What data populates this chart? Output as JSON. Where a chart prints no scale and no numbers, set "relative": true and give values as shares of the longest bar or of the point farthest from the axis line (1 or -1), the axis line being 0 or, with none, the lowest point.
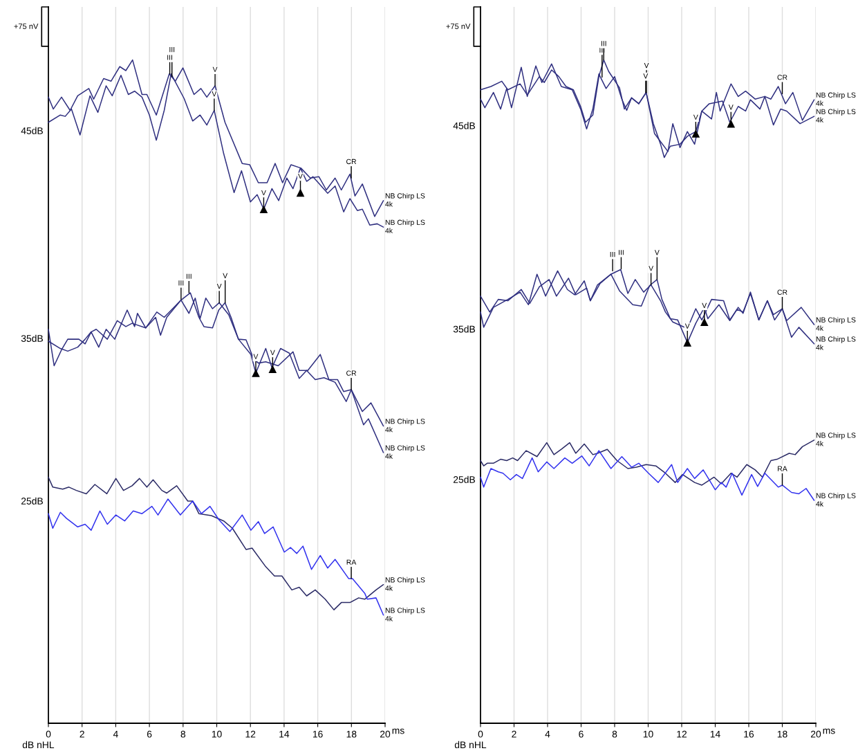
{
  "chart_data": [
    {
      "type": "line",
      "relative": true,
      "xlabel": "ms",
      "ylabel": "dB nHL",
      "xlim": [
        0,
        20
      ],
      "xticks": [
        0,
        2,
        4,
        6,
        8,
        10,
        12,
        14,
        16,
        18,
        20
      ],
      "grid": "x",
      "legend": false,
      "marker": "none",
      "line_style": "solid",
      "series": [
        {
          "name": "NB Chirp LS\n4k",
          "color": "#303080",
          "x": [
            0,
            0.29,
            0.78,
            1.29,
            1.74,
            2.4,
            2.69,
            3.28,
            3.72,
            4.24,
            4.6,
            5.0,
            5.56,
            5.85,
            6.41,
            7.18,
            7.54,
            7.99,
            8.65,
            9.06,
            9.41,
            9.9,
            10.49,
            11.51,
            11.96,
            12.47,
            12.99,
            13.47,
            13.91,
            14.41,
            15.0,
            15.56,
            16.07,
            16.51,
            17.03,
            17.4,
            17.91,
            18.21,
            18.65,
            19.38,
            19.9
          ],
          "values": [
            0.944,
            0.926,
            0.944,
            0.924,
            0.946,
            0.957,
            0.941,
            0.972,
            0.968,
            0.99,
            0.984,
            1.0,
            0.948,
            0.948,
            0.917,
            0.979,
            0.968,
            0.988,
            0.948,
            0.957,
            0.944,
            0.961,
            0.906,
            0.844,
            0.842,
            0.815,
            0.815,
            0.844,
            0.815,
            0.842,
            0.837,
            0.822,
            0.824,
            0.804,
            0.822,
            0.804,
            0.828,
            0.795,
            0.813,
            0.764,
            0.788
          ]
        },
        {
          "name": "NB Chirp LS\n4k",
          "color": "#303080",
          "x": [
            0,
            0.71,
            1.0,
            1.37,
            1.88,
            2.47,
            2.94,
            3.43,
            3.79,
            4.31,
            4.75,
            5.12,
            5.56,
            6.0,
            6.41,
            6.88,
            7.29,
            8.06,
            8.57,
            9.01,
            9.41,
            9.85,
            10.41,
            11.03,
            11.47,
            12.0,
            12.4,
            12.79,
            13.28,
            13.68,
            14.16,
            14.53,
            14.97,
            15.34,
            15.71,
            16.59,
            17.03,
            17.54,
            17.91,
            18.35,
            18.65,
            19.09,
            19.53,
            19.9
          ],
          "values": [
            0.906,
            0.917,
            0.915,
            0.926,
            0.887,
            0.946,
            0.921,
            0.961,
            0.946,
            0.977,
            0.948,
            0.953,
            0.944,
            0.917,
            0.879,
            0.924,
            0.979,
            0.942,
            0.908,
            0.917,
            0.902,
            0.924,
            0.859,
            0.8,
            0.833,
            0.786,
            0.797,
            0.775,
            0.806,
            0.788,
            0.822,
            0.806,
            0.837,
            0.817,
            0.824,
            0.799,
            0.81,
            0.771,
            0.791,
            0.773,
            0.775,
            0.751,
            0.753,
            0.748
          ]
        },
        {
          "name": "NB Chirp LS\n4k",
          "color": "#303080",
          "x": [
            0,
            0.34,
            0.78,
            1.15,
            1.81,
            2.18,
            2.54,
            2.99,
            3.43,
            3.94,
            4.68,
            5.12,
            5.29,
            5.78,
            6.44,
            6.88,
            7.88,
            8.35,
            8.72,
            9.01,
            9.35,
            9.75,
            10.15,
            10.71,
            11.29,
            11.74,
            12.18,
            12.47,
            12.91,
            13.65,
            14.53,
            14.9,
            15.41,
            16.15,
            16.66,
            17.18,
            17.54,
            17.99,
            18.65,
            19.16,
            19.9
          ],
          "values": [
            0.594,
            0.539,
            0.563,
            0.579,
            0.579,
            0.572,
            0.59,
            0.567,
            0.594,
            0.579,
            0.623,
            0.598,
            0.618,
            0.596,
            0.62,
            0.612,
            0.638,
            0.618,
            0.641,
            0.61,
            0.641,
            0.625,
            0.634,
            0.616,
            0.579,
            0.578,
            0.55,
            0.543,
            0.545,
            0.539,
            0.56,
            0.532,
            0.532,
            0.556,
            0.518,
            0.518,
            0.5,
            0.503,
            0.47,
            0.483,
            0.448
          ]
        },
        {
          "name": "NB Chirp LS\n4k",
          "color": "#303080",
          "x": [
            0,
            0.71,
            1.15,
            1.74,
            2.18,
            2.54,
            2.84,
            3.5,
            4.09,
            4.6,
            4.97,
            5.78,
            6.37,
            6.66,
            7.03,
            7.88,
            8.43,
            8.94,
            9.24,
            9.75,
            10.12,
            10.49,
            10.85,
            11.29,
            12.03,
            12.32,
            12.91,
            13.28,
            13.79,
            14.31,
            14.9,
            15.34,
            15.85,
            16.37,
            17.03,
            17.69,
            17.99,
            18.72,
            19.01,
            19.9
          ],
          "values": [
            0.576,
            0.565,
            0.561,
            0.567,
            0.579,
            0.59,
            0.594,
            0.579,
            0.607,
            0.598,
            0.603,
            0.596,
            0.612,
            0.585,
            0.612,
            0.638,
            0.649,
            0.612,
            0.598,
            0.596,
            0.623,
            0.634,
            0.612,
            0.579,
            0.556,
            0.528,
            0.565,
            0.536,
            0.565,
            0.558,
            0.52,
            0.532,
            0.518,
            0.521,
            0.514,
            0.485,
            0.503,
            0.45,
            0.459,
            0.408
          ]
        },
        {
          "name": "NB Chirp LS\n4k",
          "color": "#2b2b66",
          "x": [
            0,
            0.26,
            0.85,
            1.22,
            1.66,
            2.25,
            2.76,
            3.47,
            4.01,
            4.46,
            4.97,
            5.41,
            5.85,
            6.22,
            6.74,
            7.03,
            7.62,
            8.28,
            8.57,
            8.94,
            9.68,
            10.41,
            10.93,
            11.74,
            12.1,
            12.91,
            13.43,
            13.87,
            14.46,
            14.9,
            15.34,
            15.85,
            16.44,
            16.96,
            17.4,
            17.91,
            18.43,
            18.79,
            19.46,
            19.9
          ],
          "values": [
            0.371,
            0.356,
            0.353,
            0.356,
            0.351,
            0.346,
            0.36,
            0.346,
            0.369,
            0.351,
            0.358,
            0.369,
            0.356,
            0.367,
            0.351,
            0.347,
            0.358,
            0.335,
            0.335,
            0.316,
            0.313,
            0.305,
            0.294,
            0.262,
            0.264,
            0.236,
            0.222,
            0.222,
            0.201,
            0.205,
            0.192,
            0.201,
            0.187,
            0.171,
            0.182,
            0.182,
            0.189,
            0.187,
            0.201,
            0.209
          ]
        },
        {
          "name": "NB Chirp LS\n4k",
          "color": "#3333ee",
          "x": [
            0,
            0.26,
            0.71,
            1.07,
            1.74,
            2.18,
            2.54,
            3.06,
            3.5,
            4.01,
            4.53,
            5.04,
            5.56,
            6.15,
            6.51,
            7.1,
            7.84,
            8.57,
            9.09,
            9.6,
            10.12,
            10.78,
            11.51,
            12.03,
            12.47,
            12.84,
            13.35,
            14.01,
            14.38,
            14.75,
            15.12,
            15.63,
            16.15,
            16.59,
            17.03,
            17.84,
            18.06,
            18.79,
            18.94,
            19.46,
            19.9
          ],
          "values": [
            0.316,
            0.294,
            0.318,
            0.309,
            0.296,
            0.3,
            0.291,
            0.32,
            0.3,
            0.314,
            0.305,
            0.32,
            0.316,
            0.327,
            0.314,
            0.338,
            0.314,
            0.335,
            0.316,
            0.327,
            0.307,
            0.289,
            0.314,
            0.291,
            0.304,
            0.286,
            0.296,
            0.258,
            0.265,
            0.256,
            0.267,
            0.232,
            0.253,
            0.234,
            0.247,
            0.218,
            0.218,
            0.196,
            0.187,
            0.189,
            0.163
          ]
        },
        {
          "type": "scatter",
          "marker": "triangle",
          "color": "#000000",
          "x": [
            12.79,
            14.97,
            12.32,
            13.32
          ],
          "values": [
            0.775,
            0.8,
            0.528,
            0.534
          ]
        }
      ],
      "annotations": [
        "+75 nV",
        "45dB",
        "35dB",
        "25dB",
        {
          "text": "III",
          "x": 7.21,
          "y": 0.979
        },
        {
          "text": "III",
          "x": 7.34,
          "y": 0.975
        },
        {
          "text": "V",
          "x": 9.9,
          "y": 0.961
        },
        {
          "text": "V",
          "x": 9.85,
          "y": 0.924
        },
        {
          "text": "V",
          "x": 12.79,
          "y": 0.775
        },
        {
          "text": "V",
          "x": 14.97,
          "y": 0.8
        },
        {
          "text": "CR",
          "x": 17.99,
          "y": 0.822
        },
        {
          "text": "III",
          "x": 7.88,
          "y": 0.639
        },
        {
          "text": "III",
          "x": 8.35,
          "y": 0.649
        },
        {
          "text": "V",
          "x": 10.15,
          "y": 0.634
        },
        {
          "text": "V",
          "x": 10.5,
          "y": 0.634
        },
        {
          "text": "V",
          "x": 12.32,
          "y": 0.528
        },
        {
          "text": "V",
          "x": 13.32,
          "y": 0.534
        },
        {
          "text": "CR",
          "x": 17.99,
          "y": 0.503
        },
        {
          "text": "RA",
          "x": 17.99,
          "y": 0.218
        }
      ]
    },
    {
      "type": "line",
      "relative": true,
      "xlabel": "ms",
      "ylabel": "dB nHL",
      "xlim": [
        0,
        20
      ],
      "xticks": [
        0,
        2,
        4,
        6,
        8,
        10,
        12,
        14,
        16,
        18,
        20
      ],
      "grid": "x",
      "legend": false,
      "marker": "none",
      "line_style": "solid",
      "series": [
        {
          "name": "NB Chirp LS\n4k",
          "color": "#303080",
          "x": [
            0,
            0.62,
            1.27,
            1.63,
            2.36,
            2.79,
            3.51,
            3.8,
            4.24,
            4.67,
            5.1,
            5.54,
            5.97,
            6.26,
            6.7,
            7.06,
            7.35,
            7.64,
            8.29,
            8.58,
            9.01,
            9.44,
            9.88,
            10.31,
            10.74,
            10.96,
            11.32,
            11.9,
            12.34,
            12.84,
            13.2,
            13.78,
            14.07,
            14.29,
            14.94,
            15.37,
            15.81,
            16.38,
            16.96,
            17.32,
            17.76,
            18.19,
            18.63,
            19.2,
            19.9
          ],
          "values": [
            0.955,
            0.96,
            0.968,
            0.955,
            0.964,
            0.947,
            0.975,
            0.966,
            0.985,
            0.975,
            0.96,
            0.955,
            0.93,
            0.906,
            0.917,
            0.975,
            1.0,
            0.983,
            0.958,
            0.926,
            0.943,
            0.934,
            0.951,
            0.904,
            0.873,
            0.853,
            0.87,
            0.873,
            0.885,
            0.892,
            0.923,
            0.911,
            0.951,
            0.923,
            0.964,
            0.945,
            0.953,
            0.941,
            0.945,
            0.941,
            0.96,
            0.934,
            0.951,
            0.909,
            0.94
          ]
        },
        {
          "name": "NB Chirp LS\n4k",
          "color": "#303080",
          "x": [
            0,
            0.26,
            0.77,
            1.2,
            1.56,
            1.85,
            2.43,
            2.79,
            3.3,
            3.66,
            4.24,
            4.82,
            5.47,
            5.97,
            6.33,
            6.7,
            7.06,
            7.49,
            8.0,
            8.43,
            8.72,
            9.01,
            9.44,
            9.88,
            10.38,
            11.18,
            11.47,
            11.9,
            12.34,
            12.77,
            13.2,
            13.64,
            14.43,
            14.87,
            15.37,
            15.81,
            16.1,
            16.67,
            16.96,
            17.47,
            17.9,
            18.26,
            19.06,
            19.9
          ],
          "values": [
            0.941,
            0.928,
            0.951,
            0.926,
            0.957,
            0.928,
            0.989,
            0.945,
            0.991,
            0.966,
            0.994,
            0.96,
            0.955,
            0.926,
            0.896,
            0.926,
            0.979,
            0.957,
            0.975,
            0.941,
            0.924,
            0.943,
            0.934,
            0.951,
            0.889,
            0.862,
            0.904,
            0.868,
            0.892,
            0.873,
            0.923,
            0.934,
            0.938,
            0.906,
            0.93,
            0.923,
            0.94,
            0.926,
            0.945,
            0.902,
            0.926,
            0.923,
            0.904,
            0.915
          ]
        },
        {
          "name": "NB Chirp LS\n4k",
          "color": "#303080",
          "x": [
            0,
            0.55,
            1.06,
            1.63,
            2.43,
            2.94,
            3.51,
            4.09,
            4.53,
            5.25,
            5.68,
            6.33,
            6.55,
            7.13,
            7.78,
            8.36,
            8.79,
            9.23,
            9.73,
            10.17,
            10.74,
            11.03,
            11.47,
            12.34,
            12.84,
            13.2,
            13.78,
            14.5,
            14.87,
            15.3,
            15.66,
            16.1,
            16.6,
            17.11,
            17.54,
            18.0,
            18.26,
            19.13,
            19.9
          ],
          "values": [
            0.644,
            0.62,
            0.639,
            0.637,
            0.654,
            0.633,
            0.658,
            0.669,
            0.644,
            0.671,
            0.646,
            0.656,
            0.637,
            0.663,
            0.677,
            0.684,
            0.648,
            0.669,
            0.65,
            0.661,
            0.637,
            0.62,
            0.605,
            0.595,
            0.625,
            0.608,
            0.639,
            0.637,
            0.608,
            0.624,
            0.62,
            0.648,
            0.608,
            0.637,
            0.608,
            0.625,
            0.607,
            0.627,
            0.601
          ]
        },
        {
          "name": "NB Chirp LS\n4k",
          "color": "#303080",
          "x": [
            0,
            0.19,
            0.77,
            1.63,
            2.36,
            2.86,
            3.37,
            3.88,
            4.6,
            5.18,
            5.61,
            6.19,
            6.55,
            6.98,
            7.78,
            8.29,
            9.08,
            9.59,
            10.09,
            10.53,
            10.82,
            11.32,
            11.76,
            12.34,
            12.84,
            13.35,
            13.56,
            14.22,
            14.87,
            15.37,
            15.66,
            16.1,
            16.6,
            17.11,
            17.47,
            18.0,
            18.55,
            18.99,
            19.9
          ],
          "values": [
            0.62,
            0.597,
            0.627,
            0.639,
            0.65,
            0.631,
            0.677,
            0.644,
            0.682,
            0.654,
            0.646,
            0.667,
            0.637,
            0.661,
            0.677,
            0.652,
            0.631,
            0.629,
            0.66,
            0.669,
            0.639,
            0.61,
            0.608,
            0.574,
            0.603,
            0.627,
            0.61,
            0.631,
            0.607,
            0.627,
            0.618,
            0.65,
            0.608,
            0.637,
            0.616,
            0.625,
            0.582,
            0.597,
            0.572
          ]
        },
        {
          "name": "NB Chirp LS\n4k",
          "color": "#2b2b66",
          "x": [
            0,
            0.19,
            0.4,
            0.77,
            1.2,
            1.56,
            1.92,
            2.21,
            2.72,
            3.37,
            3.95,
            4.38,
            4.82,
            5.32,
            5.68,
            6.19,
            6.7,
            6.98,
            7.56,
            8.14,
            8.79,
            9.3,
            9.88,
            10.46,
            11.03,
            11.61,
            12.05,
            12.77,
            13.2,
            13.93,
            14.36,
            14.94,
            15.3,
            15.88,
            16.38,
            16.82,
            17.32,
            17.69,
            18.41,
            18.77,
            19.2,
            19.9
          ],
          "values": [
            0.396,
            0.388,
            0.392,
            0.392,
            0.398,
            0.396,
            0.4,
            0.396,
            0.411,
            0.402,
            0.423,
            0.405,
            0.413,
            0.423,
            0.407,
            0.421,
            0.405,
            0.407,
            0.413,
            0.396,
            0.384,
            0.386,
            0.39,
            0.388,
            0.377,
            0.363,
            0.375,
            0.363,
            0.359,
            0.371,
            0.361,
            0.377,
            0.371,
            0.39,
            0.382,
            0.371,
            0.396,
            0.398,
            0.407,
            0.405,
            0.417,
            0.427
          ]
        },
        {
          "name": "NB Chirp LS\n4k",
          "color": "#3333ee",
          "x": [
            0,
            0.19,
            0.62,
            1.06,
            1.34,
            1.78,
            2.14,
            2.5,
            3.08,
            3.44,
            3.95,
            4.38,
            5.03,
            5.47,
            6.04,
            6.48,
            7.06,
            7.78,
            8.43,
            9.01,
            9.44,
            10.02,
            10.6,
            11.4,
            11.76,
            12.34,
            12.77,
            13.28,
            14.0,
            14.36,
            14.65,
            15.01,
            15.59,
            16.17,
            16.53,
            16.96,
            17.76,
            18.0,
            18.55,
            18.99,
            19.42,
            19.9
          ],
          "values": [
            0.371,
            0.356,
            0.384,
            0.379,
            0.377,
            0.367,
            0.375,
            0.369,
            0.4,
            0.379,
            0.394,
            0.384,
            0.4,
            0.392,
            0.403,
            0.388,
            0.411,
            0.384,
            0.402,
            0.386,
            0.392,
            0.377,
            0.363,
            0.39,
            0.363,
            0.384,
            0.369,
            0.382,
            0.352,
            0.363,
            0.356,
            0.377,
            0.344,
            0.375,
            0.357,
            0.377,
            0.356,
            0.359,
            0.348,
            0.346,
            0.354,
            0.336
          ]
        },
        {
          "type": "scatter",
          "marker": "triangle",
          "color": "#000000",
          "x": [
            12.84,
            14.94,
            12.34,
            13.35
          ],
          "values": [
            0.889,
            0.904,
            0.574,
            0.605
          ]
        }
      ],
      "annotations": [
        "+75 nV",
        "45dB",
        "35dB",
        "25dB",
        {
          "text": "III",
          "x": 7.35,
          "y": 1.0
        },
        {
          "text": "III",
          "x": 7.25,
          "y": 0.974
        },
        {
          "text": "V",
          "x": 9.85,
          "y": 0.951
        },
        {
          "text": "V",
          "x": 9.9,
          "y": 0.951
        },
        {
          "text": "V",
          "x": 12.84,
          "y": 0.889
        },
        {
          "text": "V",
          "x": 14.94,
          "y": 0.904
        },
        {
          "text": "CR",
          "x": 18.0,
          "y": 0.949
        },
        {
          "text": "III",
          "x": 7.88,
          "y": 0.682
        },
        {
          "text": "III",
          "x": 8.39,
          "y": 0.685
        },
        {
          "text": "V",
          "x": 10.17,
          "y": 0.661
        },
        {
          "text": "V",
          "x": 10.53,
          "y": 0.669
        },
        {
          "text": "V",
          "x": 12.34,
          "y": 0.574
        },
        {
          "text": "V",
          "x": 13.35,
          "y": 0.605
        },
        {
          "text": "CR",
          "x": 18.0,
          "y": 0.625
        },
        {
          "text": "RA",
          "x": 18.0,
          "y": 0.359
        }
      ]
    }
  ]
}
